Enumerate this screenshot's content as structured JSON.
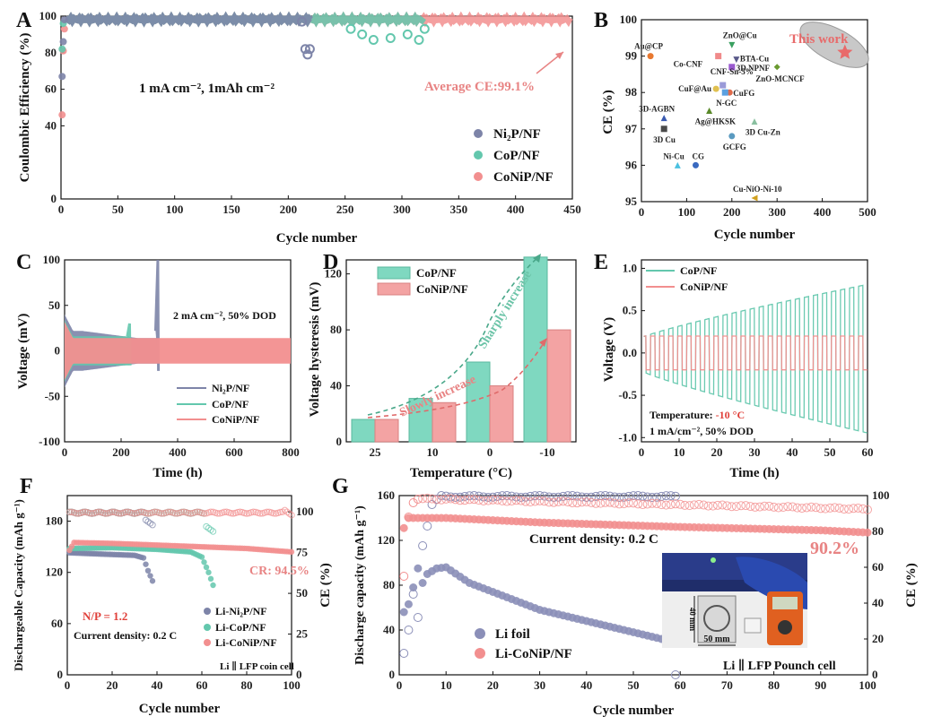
{
  "colors": {
    "ni2p": "#7d84a8",
    "cop": "#63c7ad",
    "conip": "#f28f8f",
    "conip_line": "#e8807e",
    "cop_bar": "#7fd8c0",
    "conip_bar": "#f3a3a3",
    "accent": "#e86a6a",
    "li": "#8b8fb8"
  },
  "chart_data": [
    {
      "panel": "A",
      "type": "scatter",
      "xlabel": "Cycle number",
      "ylabel": "Coulombic Efficiency (%)",
      "xlim": [
        0,
        450
      ],
      "ylim": [
        0,
        100
      ],
      "xticks": [
        0,
        50,
        100,
        150,
        200,
        250,
        300,
        350,
        400,
        450
      ],
      "yticks": [
        0,
        40,
        60,
        80,
        100
      ],
      "annotations": [
        "1 mA cm⁻², 1mAh cm⁻²",
        "Average CE:99.1%"
      ],
      "series": [
        {
          "name": "Ni₂P/NF",
          "color": "ni2p",
          "end_cycle": 220,
          "first_points": [
            67,
            86,
            98
          ],
          "fall": [
            [
              212,
              97
            ],
            [
              215,
              82
            ],
            [
              217,
              79
            ],
            [
              219,
              82
            ]
          ]
        },
        {
          "name": "CoP/NF",
          "color": "cop",
          "end_cycle": 320,
          "first_points": [
            82,
            96
          ],
          "fall": [
            [
              255,
              93
            ],
            [
              265,
              90
            ],
            [
              275,
              87
            ],
            [
              290,
              88
            ],
            [
              305,
              90
            ],
            [
              315,
              87
            ],
            [
              320,
              93
            ]
          ]
        },
        {
          "name": "CoNiP/NF",
          "color": "conip",
          "end_cycle": 448,
          "first_points": [
            46,
            81,
            93
          ],
          "fall": []
        }
      ]
    },
    {
      "panel": "B",
      "type": "scatter",
      "xlabel": "Cycle number",
      "ylabel": "CE (%)",
      "xlim": [
        0,
        500
      ],
      "ylim": [
        95,
        100
      ],
      "xticks": [
        0,
        100,
        200,
        300,
        400,
        500
      ],
      "yticks": [
        95,
        96,
        97,
        98,
        99,
        100
      ],
      "highlight": "This work",
      "points": [
        {
          "label": "This work",
          "x": 450,
          "y": 99.1,
          "marker": "star",
          "color": "#e86a6a"
        },
        {
          "label": "Au@CP",
          "x": 20,
          "y": 99.0,
          "marker": "circle",
          "color": "#e87830"
        },
        {
          "label": "ZnO@Cu",
          "x": 200,
          "y": 99.3,
          "marker": "triangle-down",
          "color": "#3aa060"
        },
        {
          "label": "Co-CNF",
          "x": 170,
          "y": 99.0,
          "marker": "square",
          "color": "#f08a8a"
        },
        {
          "label": "BTA-Cu",
          "x": 210,
          "y": 98.9,
          "marker": "triangle-down",
          "color": "#5a5a8a"
        },
        {
          "label": "3D NPNF",
          "x": 200,
          "y": 98.7,
          "marker": "square",
          "color": "#9a5ad0"
        },
        {
          "label": "ZnO-MCNCF",
          "x": 300,
          "y": 98.7,
          "marker": "diamond",
          "color": "#6a9a30"
        },
        {
          "label": "CNF-Sn-5%",
          "x": 180,
          "y": 98.2,
          "marker": "square",
          "color": "#9a9ad8"
        },
        {
          "label": "CuF@Au",
          "x": 165,
          "y": 98.1,
          "marker": "circle",
          "color": "#e0c050"
        },
        {
          "label": "CuFG",
          "x": 195,
          "y": 98.0,
          "marker": "circle",
          "color": "#e06a4a"
        },
        {
          "label": "N-GC",
          "x": 185,
          "y": 98.0,
          "marker": "square",
          "color": "#5aa0e0"
        },
        {
          "label": "3D-AGBN",
          "x": 50,
          "y": 97.3,
          "marker": "triangle",
          "color": "#3a5ab0"
        },
        {
          "label": "Ag@HKSK",
          "x": 150,
          "y": 97.5,
          "marker": "triangle",
          "color": "#5a8a2a"
        },
        {
          "label": "3D Cu-Zn",
          "x": 250,
          "y": 97.2,
          "marker": "triangle",
          "color": "#8ac0a0"
        },
        {
          "label": "3D Cu",
          "x": 50,
          "y": 97.0,
          "marker": "square",
          "color": "#4a4a4a"
        },
        {
          "label": "GCFG",
          "x": 200,
          "y": 96.8,
          "marker": "circle",
          "color": "#5a9ac0"
        },
        {
          "label": "Ni-Cu",
          "x": 80,
          "y": 96.0,
          "marker": "triangle",
          "color": "#4ac0e0"
        },
        {
          "label": "CG",
          "x": 120,
          "y": 96.0,
          "marker": "circle",
          "color": "#3a6ac0"
        },
        {
          "label": "Cu-NiO-Ni-10",
          "x": 250,
          "y": 95.1,
          "marker": "triangle-left",
          "color": "#d0a020"
        }
      ]
    },
    {
      "panel": "C",
      "type": "line",
      "xlabel": "Time (h)",
      "ylabel": "Voltage (mV)",
      "xlim": [
        0,
        800
      ],
      "ylim": [
        -100,
        100
      ],
      "xticks": [
        0,
        200,
        400,
        600,
        800
      ],
      "yticks": [
        -100,
        -50,
        0,
        50,
        100
      ],
      "annotation": "2 mA cm⁻², 50% DOD",
      "series": [
        {
          "name": "Ni₂P/NF",
          "color": "ni2p",
          "end_time": 330,
          "amplitude": 22,
          "spike": 100
        },
        {
          "name": "CoP/NF",
          "color": "cop",
          "end_time": 230,
          "amplitude": 16,
          "spike": 30
        },
        {
          "name": "CoNiP/NF",
          "color": "conip",
          "end_time": 800,
          "amplitude": 14,
          "spike": 0
        }
      ]
    },
    {
      "panel": "D",
      "type": "bar",
      "xlabel": "Temperature (°C)",
      "ylabel": "Voltage hysteresis (mV)",
      "categories": [
        "25",
        "10",
        "0",
        "-10"
      ],
      "ylim": [
        0,
        130
      ],
      "yticks": [
        0,
        40,
        80,
        120
      ],
      "series": [
        {
          "name": "CoP/NF",
          "color": "cop_bar",
          "values": [
            16,
            31,
            57,
            132
          ]
        },
        {
          "name": "CoNiP/NF",
          "color": "conip_bar",
          "values": [
            16,
            28,
            40,
            80
          ]
        }
      ],
      "annotations": [
        "Sharply increase",
        "Slowly increase"
      ]
    },
    {
      "panel": "E",
      "type": "line",
      "xlabel": "Time (h)",
      "ylabel": "Voltage (V)",
      "xlim": [
        0,
        60
      ],
      "ylim": [
        -1.05,
        1.1
      ],
      "xticks": [
        0,
        10,
        20,
        30,
        40,
        50,
        60
      ],
      "yticks": [
        -1.0,
        -0.5,
        0.0,
        0.5,
        1.0
      ],
      "annotations": [
        "Temperature: ",
        "-10 °C",
        "1 mA/cm⁻², 50% DOD"
      ],
      "series": [
        {
          "name": "CoP/NF",
          "color": "cop",
          "amp_start": 0.2,
          "amp_end": 0.9
        },
        {
          "name": "CoNiP/NF",
          "color": "conip",
          "amp_start": 0.2,
          "amp_end": 0.2
        }
      ]
    },
    {
      "panel": "F",
      "type": "scatter",
      "xlabel": "Cycle number",
      "ylabel": "Dischargeable Capacity (mAh g⁻¹)",
      "y2label": "CE (%)",
      "xlim": [
        0,
        100
      ],
      "ylim": [
        0,
        210
      ],
      "y2lim": [
        0,
        110
      ],
      "xticks": [
        0,
        20,
        40,
        60,
        80,
        100
      ],
      "yticks": [
        0,
        60,
        120,
        180
      ],
      "y2ticks": [
        0,
        25,
        50,
        75,
        100
      ],
      "annotations": [
        "CR: 94.5%",
        "N/P = 1.2",
        "Current density: 0.2 C",
        "Li ∥ LFP coin cell"
      ],
      "series": [
        {
          "name": "Li-Ni₂P/NF",
          "color": "ni2p",
          "capacity": [
            [
              1,
              143
            ],
            [
              10,
              142
            ],
            [
              30,
              140
            ],
            [
              34,
              137
            ],
            [
              36,
              122
            ],
            [
              38,
              110
            ]
          ],
          "ce_end": 38,
          "ce_drop": 92
        },
        {
          "name": "Li-CoP/NF",
          "color": "cop",
          "capacity": [
            [
              1,
              148
            ],
            [
              20,
              149
            ],
            [
              40,
              147
            ],
            [
              55,
              144
            ],
            [
              60,
              138
            ],
            [
              63,
              120
            ],
            [
              65,
              105
            ]
          ],
          "ce_end": 65,
          "ce_drop": 88
        },
        {
          "name": "Li-CoNiP/NF",
          "color": "conip",
          "capacity": [
            [
              1,
              146
            ],
            [
              3,
              155
            ],
            [
              20,
              154
            ],
            [
              50,
              151
            ],
            [
              80,
              148
            ],
            [
              100,
              144
            ]
          ],
          "ce_end": 100,
          "ce_drop": 98
        }
      ]
    },
    {
      "panel": "G",
      "type": "scatter",
      "xlabel": "Cycle number",
      "ylabel": "Discharge capacity (mAh g⁻¹)",
      "y2label": "CE (%)",
      "xlim": [
        0,
        100
      ],
      "ylim": [
        0,
        160
      ],
      "y2lim": [
        0,
        100
      ],
      "xticks": [
        0,
        10,
        20,
        30,
        40,
        50,
        60,
        70,
        80,
        90,
        100
      ],
      "yticks": [
        0,
        40,
        80,
        120,
        160
      ],
      "y2ticks": [
        0,
        20,
        40,
        60,
        80,
        100
      ],
      "annotations": [
        "Current density:  0.2 C",
        "90.2%",
        "Li ∥ LFP Pounch cell",
        "40 mm",
        "50 mm"
      ],
      "series": [
        {
          "name": "Li foil",
          "color": "li",
          "capacity": [
            [
              1,
              56
            ],
            [
              2,
              63
            ],
            [
              3,
              78
            ],
            [
              4,
              95
            ],
            [
              5,
              82
            ],
            [
              6,
              90
            ],
            [
              8,
              95
            ],
            [
              10,
              96
            ],
            [
              15,
              82
            ],
            [
              20,
              74
            ],
            [
              30,
              58
            ],
            [
              40,
              48
            ],
            [
              50,
              38
            ],
            [
              56,
              32
            ]
          ],
          "ce_start": [
            [
              1,
              12
            ],
            [
              2,
              25
            ],
            [
              3,
              45
            ],
            [
              4,
              32
            ],
            [
              5,
              72
            ],
            [
              6,
              83
            ],
            [
              7,
              95
            ],
            [
              8,
              98
            ]
          ]
        },
        {
          "name": "Li-CoNiP/NF",
          "color": "conip",
          "capacity": [
            [
              1,
              131
            ],
            [
              2,
              140
            ],
            [
              10,
              140
            ],
            [
              30,
              136
            ],
            [
              60,
              132
            ],
            [
              90,
              129
            ],
            [
              100,
              127
            ]
          ],
          "ce_start": [
            [
              1,
              55
            ],
            [
              2,
              88
            ],
            [
              3,
              96
            ],
            [
              4,
              98
            ]
          ]
        }
      ]
    }
  ]
}
